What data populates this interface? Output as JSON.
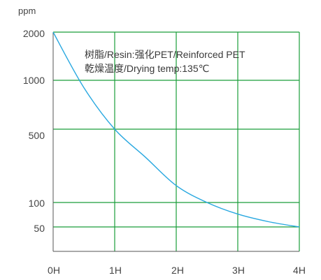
{
  "chart_data": {
    "type": "line",
    "title": "",
    "ylabel": "ppm",
    "xlabel": "",
    "x_ticks": [
      "0H",
      "1H",
      "2H",
      "3H",
      "4H"
    ],
    "y_ticks": [
      "2000",
      "1000",
      "500",
      "100",
      "50"
    ],
    "annotation_lines": [
      "树脂/Resin:强化PET/Reinforced PET",
      "乾燥温度/Drying temp:135℃"
    ],
    "series": [
      {
        "x": [
          0,
          0.5,
          1,
          1.5,
          2,
          2.5,
          3,
          3.5,
          4
        ],
        "y": [
          2000,
          900,
          500,
          270,
          145,
          100,
          72,
          58,
          50
        ]
      }
    ],
    "grid": true,
    "colors": {
      "grid": "#1a9e3a",
      "curve": "#29a8e0"
    }
  }
}
